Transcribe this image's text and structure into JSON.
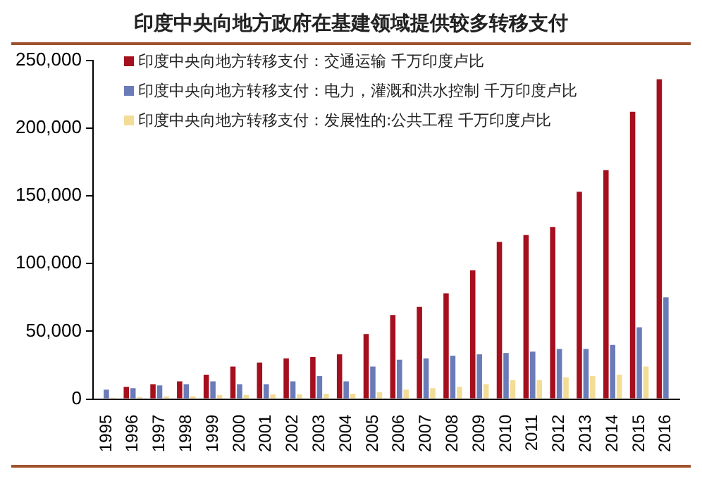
{
  "chart_data": {
    "type": "bar",
    "title": "印度中央向地方政府在基建领域提供较多转移支付",
    "categories": [
      "1995",
      "1996",
      "1997",
      "1998",
      "1999",
      "2000",
      "2001",
      "2002",
      "2003",
      "2004",
      "2005",
      "2006",
      "2007",
      "2008",
      "2009",
      "2010",
      "2011",
      "2012",
      "2013",
      "2014",
      "2015",
      "2016"
    ],
    "series": [
      {
        "name": "印度中央向地方转移支付：交通运输 千万印度卢比",
        "color": "#a50f1e",
        "values": [
          null,
          9000,
          11000,
          13000,
          18000,
          24000,
          27000,
          30000,
          31000,
          33000,
          48000,
          62000,
          68000,
          78000,
          95000,
          116000,
          121000,
          127000,
          153000,
          169000,
          212000,
          236000
        ]
      },
      {
        "name": "印度中央向地方转移支付：电力，灌溉和洪水控制 千万印度卢比",
        "color": "#6a7bb8",
        "values": [
          7000,
          8000,
          10000,
          11000,
          13000,
          11000,
          11000,
          13000,
          17000,
          13000,
          24000,
          29000,
          30000,
          32000,
          33000,
          34000,
          35000,
          37000,
          37000,
          40000,
          53000,
          75000
        ]
      },
      {
        "name": "印度中央向地方转移支付：发展性的:公共工程 千万印度卢比",
        "color": "#f3dc96",
        "values": [
          1000,
          1500,
          2000,
          2000,
          3000,
          3000,
          3500,
          3500,
          4000,
          4000,
          5000,
          7000,
          8000,
          9000,
          11000,
          14000,
          14000,
          16000,
          17000,
          18000,
          24000,
          null
        ]
      }
    ],
    "ylim": [
      0,
      250000
    ],
    "yticks": [
      {
        "value": 0,
        "label": "0"
      },
      {
        "value": 50000,
        "label": "50,000"
      },
      {
        "value": 100000,
        "label": "100,000"
      },
      {
        "value": 150000,
        "label": "150,000"
      },
      {
        "value": 200000,
        "label": "200,000"
      },
      {
        "value": 250000,
        "label": "250,000"
      }
    ],
    "grid": false,
    "legend": "top left"
  }
}
